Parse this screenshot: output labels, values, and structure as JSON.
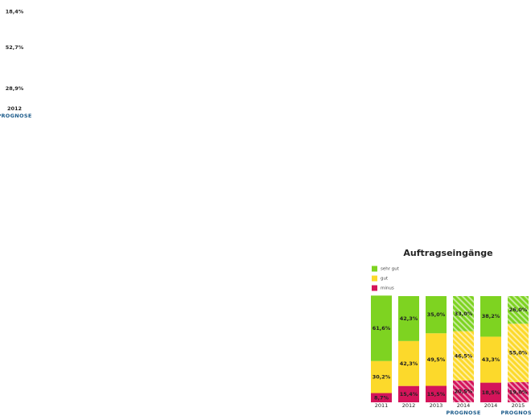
{
  "chart_data": [
    {
      "type": "stacked_bar",
      "categories": [
        "2012"
      ],
      "sublabels": [
        "PROGNOSE"
      ],
      "series": [
        {
          "color": "#ffffff",
          "values": [
            18.4
          ],
          "value_labels": [
            "18,4%"
          ]
        },
        {
          "color": "#ffffff",
          "values": [
            52.7
          ],
          "value_labels": [
            "52,7%"
          ]
        },
        {
          "color": "#ffffff",
          "values": [
            28.9
          ],
          "value_labels": [
            "28,9%"
          ]
        }
      ]
    },
    {
      "type": "stacked_bar",
      "title": "Auftragseingänge",
      "categories": [
        "2011",
        "2012",
        "2013",
        "2014",
        "2014",
        "2015"
      ],
      "sublabels": [
        null,
        null,
        null,
        "PROGNOSE",
        null,
        "PROGNOSE"
      ],
      "hatched": [
        false,
        false,
        false,
        true,
        false,
        true
      ],
      "series": [
        {
          "name": "sehr gut",
          "color": "#7ed321",
          "values": [
            61.6,
            42.3,
            35.0,
            33.0,
            38.2,
            26.0
          ],
          "value_labels": [
            "61,6%",
            "42,3%",
            "35,0%",
            "33,0%",
            "38,2%",
            "26,0%"
          ]
        },
        {
          "name": "gut",
          "color": "#fcd92b",
          "values": [
            30.2,
            42.3,
            49.5,
            46.5,
            43.3,
            55.0
          ],
          "value_labels": [
            "30,2%",
            "42,3%",
            "49,5%",
            "46,5%",
            "43,3%",
            "55,0%"
          ]
        },
        {
          "name": "minus",
          "color": "#d4145a",
          "values": [
            8.7,
            15.4,
            15.5,
            20.5,
            18.5,
            19.0
          ],
          "value_labels": [
            "8,7%",
            "15,4%",
            "15,5%",
            "20,5%",
            "18,5%",
            "19,0%"
          ]
        }
      ]
    }
  ]
}
